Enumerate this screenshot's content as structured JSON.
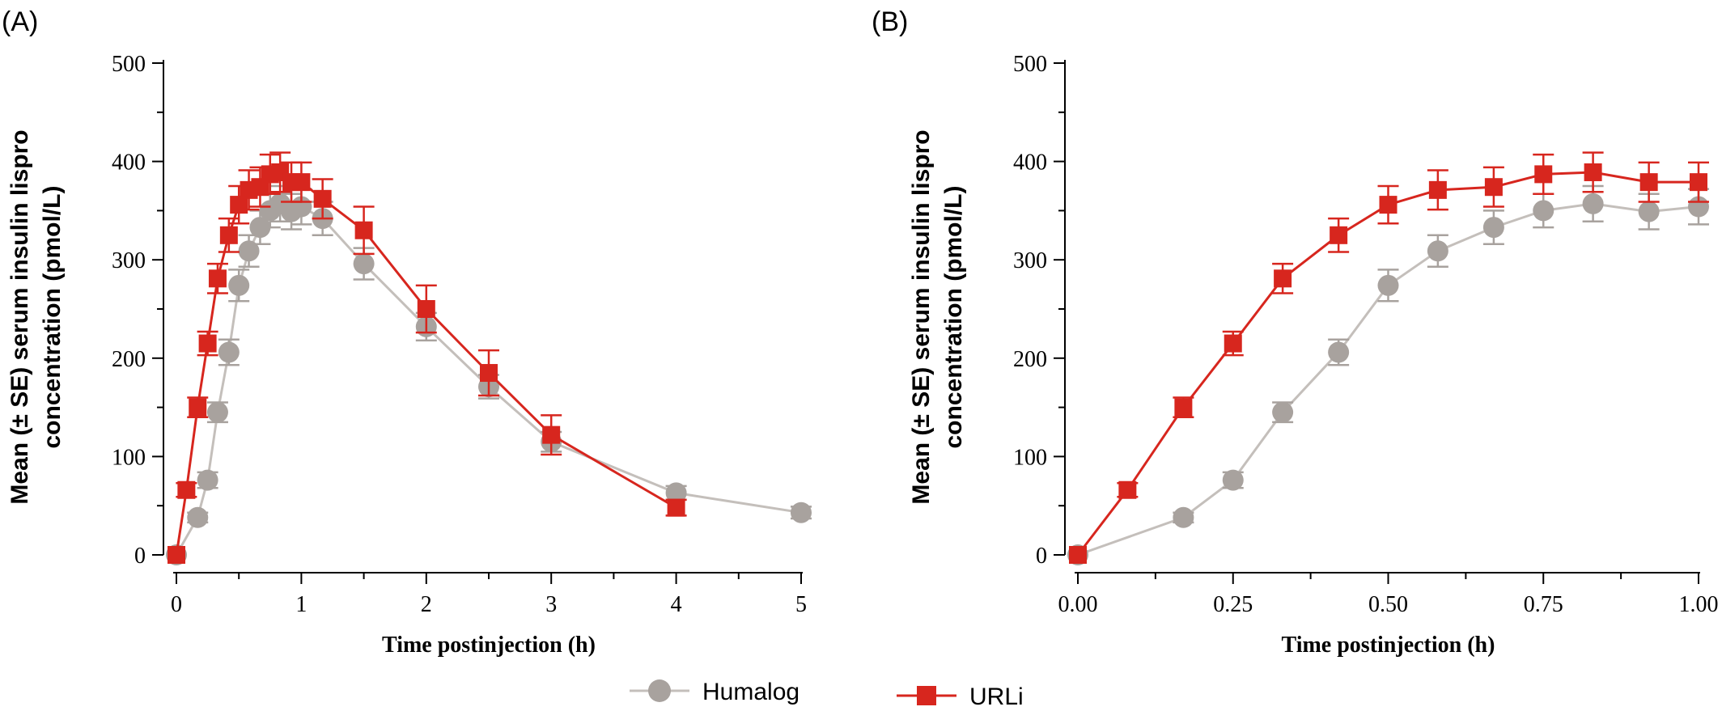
{
  "colors": {
    "humalog": "#a8a29e",
    "humalog_line": "#c4bfbb",
    "urli": "#d7261e",
    "axis": "#000000"
  },
  "legend": {
    "items": [
      {
        "key": "humalog",
        "label": "Humalog",
        "marker": "circle"
      },
      {
        "key": "urli",
        "label": "URLi",
        "marker": "square"
      }
    ]
  },
  "chart_data": [
    {
      "panel_label": "(A)",
      "type": "line",
      "xlabel": "Time postinjection (h)",
      "ylabel_lines": [
        "Mean (± SE) serum insulin lispro",
        "concentration (pmol/L)"
      ],
      "xlim": [
        0,
        5
      ],
      "ylim": [
        0,
        500
      ],
      "xticks": [
        0,
        1,
        2,
        3,
        4,
        5
      ],
      "xtick_labels": [
        "0",
        "1",
        "2",
        "3",
        "4",
        "5"
      ],
      "yticks": [
        0,
        100,
        200,
        300,
        400,
        500
      ],
      "ytick_labels": [
        "0",
        "100",
        "200",
        "300",
        "400",
        "500"
      ],
      "series": [
        {
          "name": "Humalog",
          "points": [
            {
              "x": 0,
              "y": 0,
              "se": 0
            },
            {
              "x": 0.17,
              "y": 38,
              "se": 5
            },
            {
              "x": 0.25,
              "y": 76,
              "se": 8
            },
            {
              "x": 0.33,
              "y": 145,
              "se": 10
            },
            {
              "x": 0.42,
              "y": 206,
              "se": 13
            },
            {
              "x": 0.5,
              "y": 274,
              "se": 16
            },
            {
              "x": 0.58,
              "y": 309,
              "se": 16
            },
            {
              "x": 0.67,
              "y": 333,
              "se": 17
            },
            {
              "x": 0.75,
              "y": 350,
              "se": 17
            },
            {
              "x": 0.83,
              "y": 357,
              "se": 18
            },
            {
              "x": 0.92,
              "y": 349,
              "se": 18
            },
            {
              "x": 1.0,
              "y": 354,
              "se": 18
            },
            {
              "x": 1.17,
              "y": 342,
              "se": 17
            },
            {
              "x": 1.5,
              "y": 296,
              "se": 16
            },
            {
              "x": 2.0,
              "y": 232,
              "se": 14
            },
            {
              "x": 2.5,
              "y": 171,
              "se": 12
            },
            {
              "x": 3.0,
              "y": 115,
              "se": 10
            },
            {
              "x": 4.0,
              "y": 63,
              "se": 7
            },
            {
              "x": 5.0,
              "y": 43,
              "se": 6
            }
          ]
        },
        {
          "name": "URLi",
          "points": [
            {
              "x": 0,
              "y": 0,
              "se": 0
            },
            {
              "x": 0.08,
              "y": 66,
              "se": 7
            },
            {
              "x": 0.17,
              "y": 150,
              "se": 10
            },
            {
              "x": 0.25,
              "y": 215,
              "se": 12
            },
            {
              "x": 0.33,
              "y": 281,
              "se": 15
            },
            {
              "x": 0.42,
              "y": 325,
              "se": 17
            },
            {
              "x": 0.5,
              "y": 356,
              "se": 19
            },
            {
              "x": 0.58,
              "y": 371,
              "se": 20
            },
            {
              "x": 0.67,
              "y": 374,
              "se": 20
            },
            {
              "x": 0.75,
              "y": 387,
              "se": 20
            },
            {
              "x": 0.83,
              "y": 389,
              "se": 20
            },
            {
              "x": 0.92,
              "y": 379,
              "se": 20
            },
            {
              "x": 1.0,
              "y": 379,
              "se": 20
            },
            {
              "x": 1.17,
              "y": 362,
              "se": 20
            },
            {
              "x": 1.5,
              "y": 330,
              "se": 24
            },
            {
              "x": 2.0,
              "y": 250,
              "se": 24
            },
            {
              "x": 2.5,
              "y": 185,
              "se": 23
            },
            {
              "x": 3.0,
              "y": 122,
              "se": 20
            },
            {
              "x": 4.0,
              "y": 48,
              "se": 8
            }
          ]
        }
      ]
    },
    {
      "panel_label": "(B)",
      "type": "line",
      "xlabel": "Time postinjection (h)",
      "ylabel_lines": [
        "Mean (± SE) serum insulin lispro",
        "concentration (pmol/L)"
      ],
      "xlim": [
        0,
        1
      ],
      "ylim": [
        0,
        500
      ],
      "xticks": [
        0,
        0.25,
        0.5,
        0.75,
        1.0
      ],
      "xtick_labels": [
        "0.00",
        "0.25",
        "0.50",
        "0.75",
        "1.00"
      ],
      "yticks": [
        0,
        100,
        200,
        300,
        400,
        500
      ],
      "ytick_labels": [
        "0",
        "100",
        "200",
        "300",
        "400",
        "500"
      ],
      "series": [
        {
          "name": "Humalog",
          "points": [
            {
              "x": 0,
              "y": 0,
              "se": 0
            },
            {
              "x": 0.17,
              "y": 38,
              "se": 5
            },
            {
              "x": 0.25,
              "y": 76,
              "se": 8
            },
            {
              "x": 0.33,
              "y": 145,
              "se": 10
            },
            {
              "x": 0.42,
              "y": 206,
              "se": 13
            },
            {
              "x": 0.5,
              "y": 274,
              "se": 16
            },
            {
              "x": 0.58,
              "y": 309,
              "se": 16
            },
            {
              "x": 0.67,
              "y": 333,
              "se": 17
            },
            {
              "x": 0.75,
              "y": 350,
              "se": 17
            },
            {
              "x": 0.83,
              "y": 357,
              "se": 18
            },
            {
              "x": 0.92,
              "y": 349,
              "se": 18
            },
            {
              "x": 1.0,
              "y": 354,
              "se": 18
            }
          ]
        },
        {
          "name": "URLi",
          "points": [
            {
              "x": 0,
              "y": 0,
              "se": 0
            },
            {
              "x": 0.08,
              "y": 66,
              "se": 7
            },
            {
              "x": 0.17,
              "y": 150,
              "se": 10
            },
            {
              "x": 0.25,
              "y": 215,
              "se": 12
            },
            {
              "x": 0.33,
              "y": 281,
              "se": 15
            },
            {
              "x": 0.42,
              "y": 325,
              "se": 17
            },
            {
              "x": 0.5,
              "y": 356,
              "se": 19
            },
            {
              "x": 0.58,
              "y": 371,
              "se": 20
            },
            {
              "x": 0.67,
              "y": 374,
              "se": 20
            },
            {
              "x": 0.75,
              "y": 387,
              "se": 20
            },
            {
              "x": 0.83,
              "y": 389,
              "se": 20
            },
            {
              "x": 0.92,
              "y": 379,
              "se": 20
            },
            {
              "x": 1.0,
              "y": 379,
              "se": 20
            }
          ]
        }
      ]
    }
  ]
}
